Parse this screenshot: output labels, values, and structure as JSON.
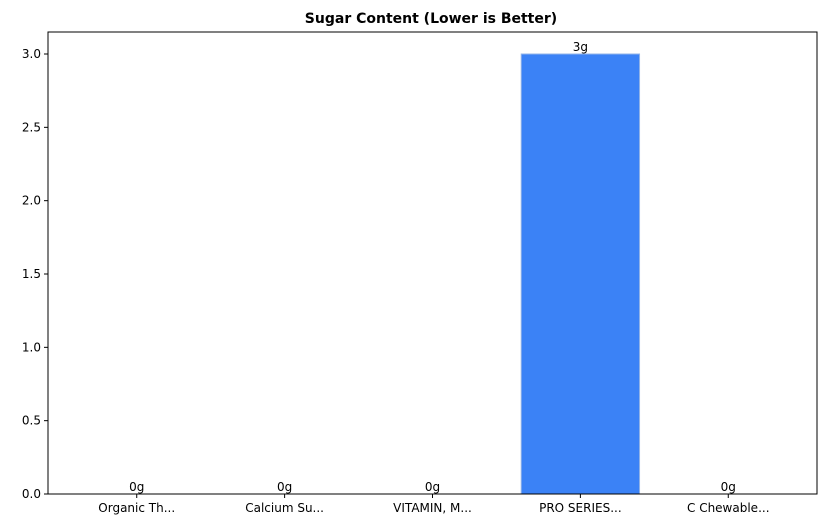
{
  "chart_data": {
    "type": "bar",
    "title": "Sugar Content (Lower is Better)",
    "xlabel": "",
    "ylabel": "",
    "categories": [
      "Organic Th...",
      "Calcium Su...",
      "VITAMIN, M...",
      "PRO SERIES...",
      "C Chewable..."
    ],
    "values": [
      0,
      0,
      0,
      3,
      0
    ],
    "data_labels": [
      "0g",
      "0g",
      "0g",
      "3g",
      "0g"
    ],
    "ylim": [
      0,
      3.15
    ],
    "yticks": [
      0.0,
      0.5,
      1.0,
      1.5,
      2.0,
      2.5,
      3.0
    ],
    "ytick_labels": [
      "0.0",
      "0.5",
      "1.0",
      "1.5",
      "2.0",
      "2.5",
      "3.0"
    ],
    "bar_color": "#3b82f6",
    "bar_edge_color": "#93b4e8",
    "grid": false,
    "legend": "none"
  }
}
